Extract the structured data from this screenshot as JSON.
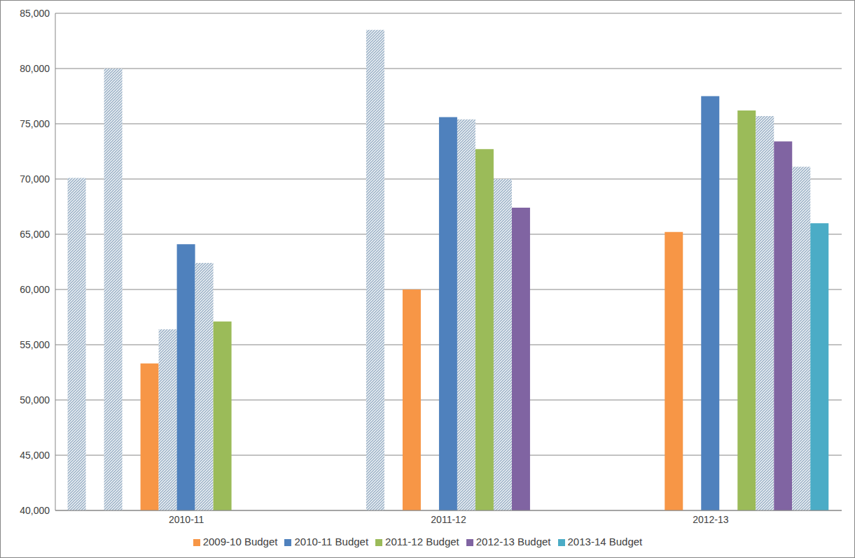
{
  "chart_data": {
    "type": "bar",
    "categories": [
      "2010-11",
      "2011-12",
      "2012-13"
    ],
    "series": [
      {
        "color": "#9db3c8",
        "line_style": "hatched",
        "values": [
          70100,
          null,
          null
        ]
      },
      {
        "values": [
          null,
          null,
          null
        ]
      },
      {
        "color": "#9db3c8",
        "line_style": "hatched",
        "values": [
          80000,
          83500,
          null
        ]
      },
      {
        "values": [
          null,
          null,
          null
        ]
      },
      {
        "name": "2009-10 Budget",
        "color": "#f79646",
        "values": [
          53300,
          60000,
          65200
        ]
      },
      {
        "color": "#9db3c8",
        "line_style": "hatched",
        "values": [
          56400,
          null,
          null
        ]
      },
      {
        "name": "2010-11 Budget",
        "color": "#4f81bd",
        "values": [
          64100,
          75600,
          77500
        ]
      },
      {
        "color": "#9db3c8",
        "line_style": "hatched",
        "values": [
          62400,
          75400,
          null
        ]
      },
      {
        "name": "2011-12 Budget",
        "color": "#9bbb59",
        "values": [
          57100,
          72700,
          76200
        ]
      },
      {
        "color": "#9db3c8",
        "line_style": "hatched",
        "values": [
          null,
          70000,
          75700
        ]
      },
      {
        "name": "2012-13 Budget",
        "color": "#8064a2",
        "values": [
          null,
          67400,
          73400
        ]
      },
      {
        "color": "#9db3c8",
        "line_style": "hatched",
        "values": [
          null,
          null,
          71100
        ]
      },
      {
        "name": "2013-14 Budget",
        "color": "#4bacc6",
        "values": [
          null,
          null,
          66000
        ]
      }
    ],
    "ylim": [
      40000,
      85000
    ],
    "yticks": [
      {
        "value": 40000,
        "label": "40,000"
      },
      {
        "value": 45000,
        "label": "45,000"
      },
      {
        "value": 50000,
        "label": "50,000"
      },
      {
        "value": 55000,
        "label": "55,000"
      },
      {
        "value": 60000,
        "label": "60,000"
      },
      {
        "value": 65000,
        "label": "65,000"
      },
      {
        "value": 70000,
        "label": "70,000"
      },
      {
        "value": 75000,
        "label": "75,000"
      },
      {
        "value": 80000,
        "label": "80,000"
      },
      {
        "value": 85000,
        "label": "85,000"
      }
    ],
    "grid": true,
    "legend": "bottom"
  }
}
